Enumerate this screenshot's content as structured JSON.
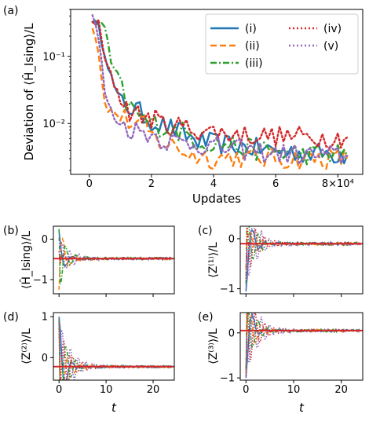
{
  "chart_data": [
    {
      "panel": "(a)",
      "type": "line",
      "xlabel": "Updates",
      "ylabel": "Deviation of ⟨Ĥ_Ising⟩/L",
      "x_offset_label": "×10⁴",
      "xscale": "linear",
      "yscale": "log",
      "xlim": [
        -0.6,
        8.8
      ],
      "ylim": [
        0.00175,
        0.5
      ],
      "x_ticks": [
        0,
        2,
        4,
        6,
        8
      ],
      "x_tick_labels": [
        "0",
        "2",
        "4",
        "6",
        "8×10⁴"
      ],
      "y_ticks": [
        0.01,
        0.1
      ],
      "y_tick_labels": [
        "10⁻²",
        "10⁻¹"
      ],
      "grid": false,
      "legend_placement": "top-right",
      "legend_columns": 2,
      "series": [
        {
          "name": "(i)",
          "color": "#1f77b4",
          "style": "solid",
          "points": [
            [
              0.1,
              0.36
            ],
            [
              0.3,
              0.25
            ],
            [
              0.5,
              0.12
            ],
            [
              0.7,
              0.05
            ],
            [
              0.9,
              0.025
            ],
            [
              1.2,
              0.018
            ],
            [
              1.5,
              0.016
            ],
            [
              2,
              0.011
            ],
            [
              2.5,
              0.009
            ],
            [
              3,
              0.007
            ],
            [
              3.5,
              0.0055
            ],
            [
              4,
              0.005
            ],
            [
              4.5,
              0.0048
            ],
            [
              5,
              0.0045
            ],
            [
              5.5,
              0.0042
            ],
            [
              6,
              0.004
            ],
            [
              6.5,
              0.0038
            ],
            [
              7,
              0.0037
            ],
            [
              7.5,
              0.0036
            ],
            [
              8,
              0.0035
            ],
            [
              8.3,
              0.0034
            ]
          ]
        },
        {
          "name": "(ii)",
          "color": "#ff7f0e",
          "style": "dashed",
          "points": [
            [
              0.1,
              0.3
            ],
            [
              0.3,
              0.12
            ],
            [
              0.5,
              0.02
            ],
            [
              0.7,
              0.015
            ],
            [
              1,
              0.013
            ],
            [
              1.4,
              0.01
            ],
            [
              1.8,
              0.009
            ],
            [
              2,
              0.0065
            ],
            [
              2.4,
              0.005
            ],
            [
              2.8,
              0.0045
            ],
            [
              3.2,
              0.0035
            ],
            [
              3.6,
              0.0033
            ],
            [
              4,
              0.003
            ],
            [
              4.5,
              0.0032
            ],
            [
              5,
              0.0031
            ],
            [
              5.5,
              0.003
            ],
            [
              6,
              0.003
            ],
            [
              6.5,
              0.0029
            ],
            [
              7,
              0.003
            ],
            [
              7.5,
              0.003
            ],
            [
              8,
              0.003
            ],
            [
              8.3,
              0.003
            ]
          ]
        },
        {
          "name": "(iii)",
          "color": "#2ca02c",
          "style": "dashdot",
          "points": [
            [
              0.1,
              0.34
            ],
            [
              0.3,
              0.3
            ],
            [
              0.5,
              0.26
            ],
            [
              0.7,
              0.08
            ],
            [
              0.9,
              0.05
            ],
            [
              1.2,
              0.02
            ],
            [
              1.6,
              0.013
            ],
            [
              2,
              0.01
            ],
            [
              2.5,
              0.0085
            ],
            [
              3,
              0.0075
            ],
            [
              3.5,
              0.0055
            ],
            [
              4,
              0.005
            ],
            [
              4.5,
              0.0048
            ],
            [
              5,
              0.0042
            ],
            [
              5.5,
              0.004
            ],
            [
              6,
              0.0038
            ],
            [
              6.5,
              0.0036
            ],
            [
              7,
              0.0035
            ],
            [
              7.5,
              0.0035
            ],
            [
              8,
              0.0036
            ],
            [
              8.3,
              0.0033
            ]
          ]
        },
        {
          "name": "(iv)",
          "color": "#d62728",
          "style": "dotted",
          "points": [
            [
              0.1,
              0.35
            ],
            [
              0.3,
              0.3
            ],
            [
              0.5,
              0.09
            ],
            [
              0.7,
              0.05
            ],
            [
              1,
              0.025
            ],
            [
              1.3,
              0.015
            ],
            [
              1.7,
              0.013
            ],
            [
              2,
              0.012
            ],
            [
              2.5,
              0.0095
            ],
            [
              3,
              0.009
            ],
            [
              3.5,
              0.008
            ],
            [
              4,
              0.0075
            ],
            [
              4.5,
              0.007
            ],
            [
              5,
              0.0068
            ],
            [
              5.5,
              0.0066
            ],
            [
              6,
              0.0065
            ],
            [
              6.5,
              0.0064
            ],
            [
              7,
              0.0064
            ],
            [
              7.5,
              0.0063
            ],
            [
              8,
              0.0062
            ],
            [
              8.3,
              0.0062
            ]
          ]
        },
        {
          "name": "(v)",
          "color": "#9467bd",
          "style": "dotted",
          "points": [
            [
              0.1,
              0.42
            ],
            [
              0.3,
              0.18
            ],
            [
              0.5,
              0.03
            ],
            [
              0.7,
              0.015
            ],
            [
              1,
              0.0095
            ],
            [
              1.5,
              0.008
            ],
            [
              2,
              0.007
            ],
            [
              2.3,
              0.006
            ],
            [
              2.5,
              0.0055
            ],
            [
              3,
              0.0052
            ],
            [
              3.5,
              0.005
            ],
            [
              4,
              0.0045
            ],
            [
              4.5,
              0.0042
            ],
            [
              5,
              0.004
            ],
            [
              5.5,
              0.0038
            ],
            [
              6,
              0.0036
            ],
            [
              6.5,
              0.0035
            ],
            [
              7,
              0.0034
            ],
            [
              7.5,
              0.0033
            ],
            [
              8,
              0.0033
            ],
            [
              8.3,
              0.0033
            ]
          ]
        }
      ]
    },
    {
      "panel": "(b)",
      "type": "line",
      "xlabel": "",
      "ylabel": "⟨Ĥ_Ising⟩/L",
      "xlim": [
        -1.2,
        24.5
      ],
      "ylim": [
        -1.35,
        0.32
      ],
      "x_ticks": [
        0,
        10,
        20
      ],
      "x_tick_labels": [
        "",
        "",
        ""
      ],
      "y_ticks": [
        -1,
        0
      ],
      "y_tick_labels": [
        "−1",
        "0"
      ],
      "reference_line": {
        "y": -0.48,
        "color": "#d62728"
      },
      "converged_value": -0.48,
      "series_start_values": [
        0.2,
        -1.25,
        0.25,
        -0.3,
        0.05
      ]
    },
    {
      "panel": "(c)",
      "type": "line",
      "xlabel": "",
      "ylabel": "⟨Z⁽¹⁾⟩/L",
      "xlim": [
        -1.2,
        24.5
      ],
      "ylim": [
        -1.1,
        0.25
      ],
      "x_ticks": [
        0,
        10,
        20
      ],
      "x_tick_labels": [
        "",
        "",
        ""
      ],
      "y_ticks": [
        -1,
        0
      ],
      "y_tick_labels": [
        "−1",
        "0"
      ],
      "reference_line": {
        "y": -0.1,
        "color": "#d62728"
      },
      "converged_value": -0.1,
      "series_start_values": [
        -1.05,
        -0.6,
        -0.9,
        -0.8,
        -1.0
      ]
    },
    {
      "panel": "(d)",
      "type": "line",
      "xlabel": "t",
      "ylabel": "⟨Z⁽²⁾⟩/L",
      "xlim": [
        -1.2,
        24.5
      ],
      "ylim": [
        -0.55,
        1.1
      ],
      "x_ticks": [
        0,
        10,
        20
      ],
      "x_tick_labels": [
        "0",
        "10",
        "20"
      ],
      "y_ticks": [
        0,
        1
      ],
      "y_tick_labels": [
        "0",
        "1"
      ],
      "reference_line": {
        "y": -0.22,
        "color": "#d62728"
      },
      "converged_value": -0.22,
      "series_start_values": [
        1.0,
        0.9,
        0.95,
        0.85,
        1.0
      ]
    },
    {
      "panel": "(e)",
      "type": "line",
      "xlabel": "t",
      "ylabel": "⟨Z⁽³⁾⟩/L",
      "xlim": [
        -1.2,
        24.5
      ],
      "ylim": [
        -1.05,
        0.45
      ],
      "x_ticks": [
        0,
        10,
        20
      ],
      "x_tick_labels": [
        "0",
        "10",
        "20"
      ],
      "y_ticks": [
        -1,
        0
      ],
      "y_tick_labels": [
        "−1",
        "0"
      ],
      "reference_line": {
        "y": 0.05,
        "color": "#d62728"
      },
      "converged_value": 0.05,
      "series_start_values": [
        -1.0,
        -0.9,
        -0.8,
        -0.95,
        -1.0
      ]
    }
  ]
}
